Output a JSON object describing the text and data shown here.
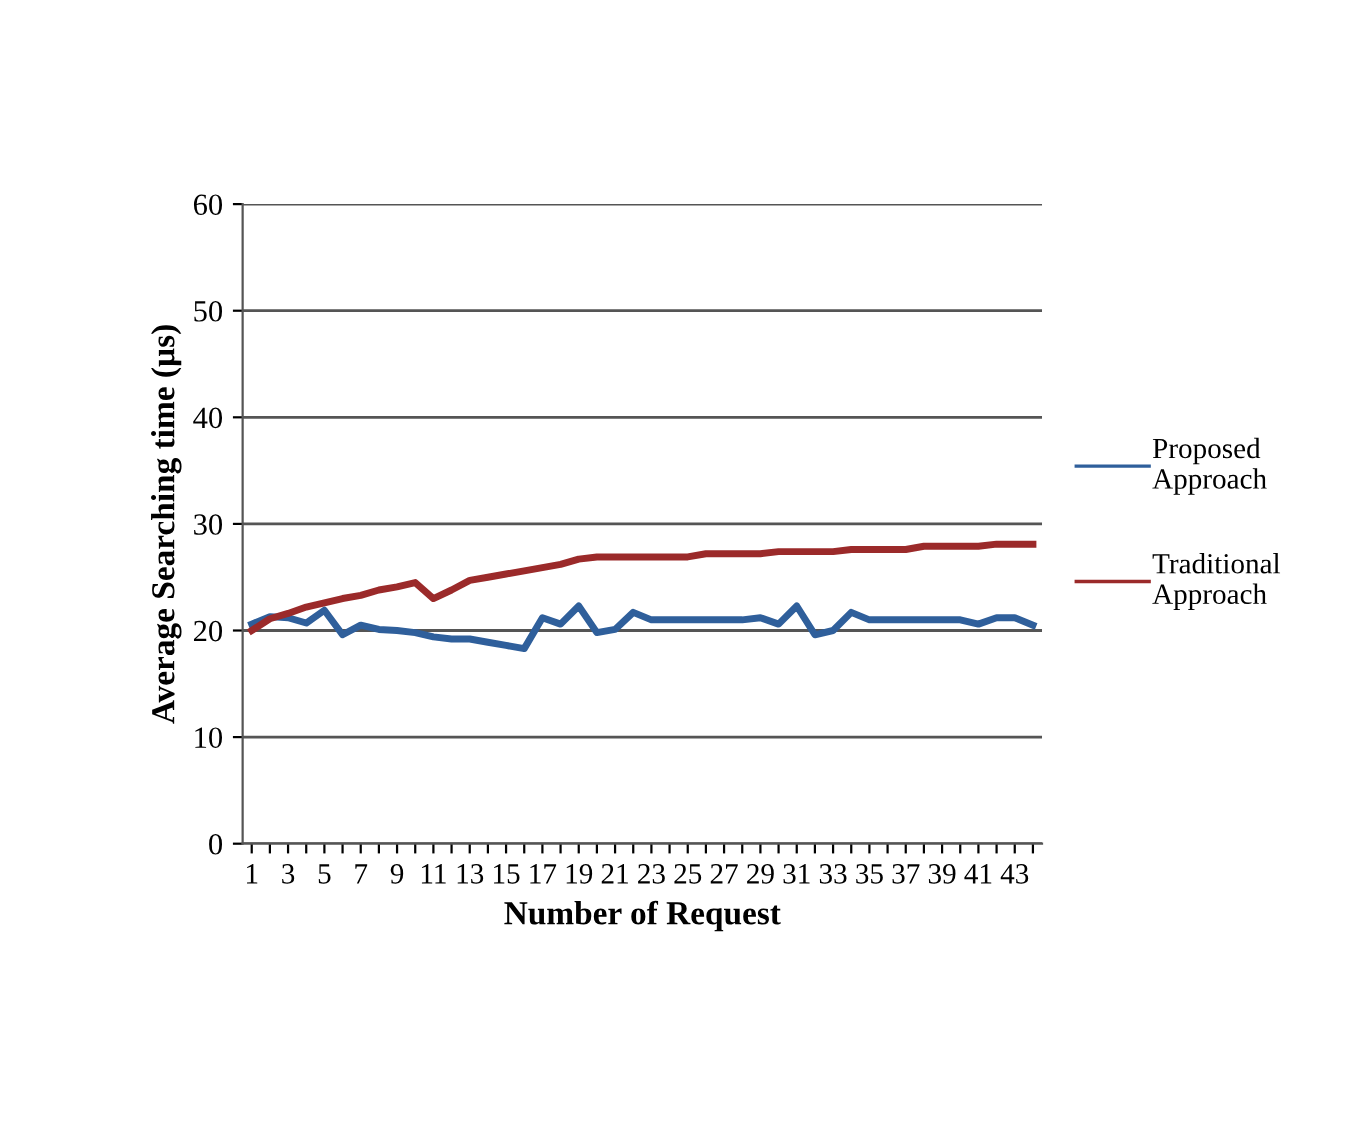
{
  "chart_data": {
    "type": "line",
    "xlabel": "Number of Request",
    "ylabel": "Average Searching time (µs)",
    "categories": [
      "1",
      null,
      "3",
      null,
      "5",
      null,
      "7",
      null,
      "9",
      null,
      "11",
      null,
      "13",
      null,
      "15",
      null,
      "17",
      null,
      "19",
      null,
      "21",
      null,
      "23",
      null,
      "25",
      null,
      "27",
      null,
      "29",
      null,
      "31",
      null,
      "33",
      null,
      "35",
      null,
      "37",
      null,
      "39",
      null,
      "41",
      null,
      "43",
      null
    ],
    "series": [
      {
        "name": "Proposed Approach",
        "color": "#2f5f9b",
        "values": [
          20.6,
          21.3,
          21.2,
          20.7,
          21.9,
          19.6,
          20.5,
          20.1,
          20.0,
          19.8,
          19.4,
          19.2,
          19.2,
          18.9,
          18.6,
          18.3,
          21.2,
          20.6,
          22.3,
          19.8,
          20.1,
          21.7,
          21.0,
          21.0,
          21.0,
          21.0,
          21.0,
          21.0,
          21.2,
          20.6,
          22.3,
          19.6,
          20.0,
          21.7,
          21.0,
          21.0,
          21.0,
          21.0,
          21.0,
          21.0,
          20.6,
          21.2,
          21.2,
          20.5
        ]
      },
      {
        "name": "Traditional Approach",
        "color": "#9b2a2a",
        "values": [
          20.0,
          21.1,
          21.6,
          22.2,
          22.6,
          23.0,
          23.3,
          23.8,
          24.1,
          24.5,
          23.0,
          23.8,
          24.7,
          25.0,
          25.3,
          25.6,
          25.9,
          26.2,
          26.7,
          26.9,
          26.9,
          26.9,
          26.9,
          26.9,
          26.9,
          27.2,
          27.2,
          27.2,
          27.2,
          27.4,
          27.4,
          27.4,
          27.4,
          27.6,
          27.6,
          27.6,
          27.6,
          27.9,
          27.9,
          27.9,
          27.9,
          28.1,
          28.1,
          28.1
        ]
      }
    ],
    "ylim": [
      0,
      60
    ],
    "yticks": [
      0,
      10,
      20,
      30,
      40,
      50,
      60
    ],
    "grid": "y",
    "legend": "right",
    "marker": "none",
    "line_style": "solid"
  }
}
